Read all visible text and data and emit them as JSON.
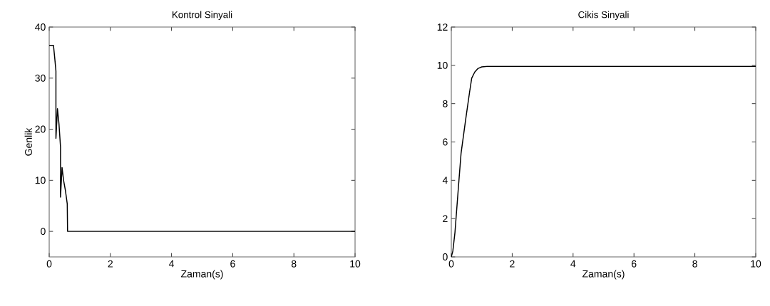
{
  "chart_data": [
    {
      "type": "line",
      "title": "Kontrol Sinyali",
      "xlabel": "Zaman(s)",
      "ylabel": "Genlik",
      "color": "#000000",
      "x": [
        0,
        0.02,
        0.14,
        0.18,
        0.22,
        0.22,
        0.27,
        0.32,
        0.37,
        0.37,
        0.42,
        0.47,
        0.53,
        0.59,
        0.6,
        10
      ],
      "values": [
        36.4,
        36.4,
        36.4,
        34,
        31.4,
        18.2,
        24,
        21,
        16.5,
        6.7,
        12.5,
        10,
        8,
        5.4,
        0,
        0
      ],
      "xlim": [
        0,
        10
      ],
      "ylim": [
        -5,
        40
      ],
      "xticks": [
        0,
        2,
        4,
        6,
        8,
        10
      ],
      "yticks": [
        0,
        10,
        20,
        30,
        40
      ]
    },
    {
      "type": "line",
      "title": "Cikis Sinyali",
      "xlabel": "Zaman(s)",
      "color": "#000000",
      "x": [
        0,
        0.05,
        0.12,
        0.24,
        0.32,
        0.48,
        0.6,
        0.67,
        0.77,
        0.87,
        1.0,
        1.18,
        10
      ],
      "values": [
        0,
        0.3,
        1.28,
        3.78,
        5.4,
        7.27,
        8.6,
        9.33,
        9.65,
        9.83,
        9.92,
        9.95,
        9.95
      ],
      "xlim": [
        0,
        10
      ],
      "ylim": [
        0,
        12
      ],
      "xticks": [
        0,
        2,
        4,
        6,
        8,
        10
      ],
      "yticks": [
        0,
        2,
        4,
        6,
        8,
        10,
        12
      ]
    }
  ]
}
